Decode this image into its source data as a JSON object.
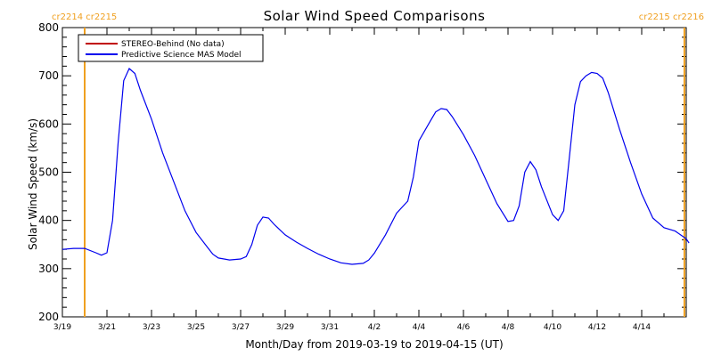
{
  "chart_data": {
    "type": "line",
    "title": "Solar Wind Speed Comparisons",
    "xlabel": "Month/Day from 2019-03-19 to 2019-04-15 (UT)",
    "ylabel": "Solar Wind Speed (km/s)",
    "xlim": [
      "2019-03-19",
      "2019-04-16"
    ],
    "ylim": [
      200,
      800
    ],
    "x_ticks": [
      {
        "date": "2019-03-19",
        "label": "3/19"
      },
      {
        "date": "2019-03-21",
        "label": "3/21"
      },
      {
        "date": "2019-03-23",
        "label": "3/23"
      },
      {
        "date": "2019-03-25",
        "label": "3/25"
      },
      {
        "date": "2019-03-27",
        "label": "3/27"
      },
      {
        "date": "2019-03-29",
        "label": "3/29"
      },
      {
        "date": "2019-03-31",
        "label": "3/31"
      },
      {
        "date": "2019-04-02",
        "label": "4/2"
      },
      {
        "date": "2019-04-04",
        "label": "4/4"
      },
      {
        "date": "2019-04-06",
        "label": "4/6"
      },
      {
        "date": "2019-04-08",
        "label": "4/8"
      },
      {
        "date": "2019-04-10",
        "label": "4/10"
      },
      {
        "date": "2019-04-12",
        "label": "4/12"
      },
      {
        "date": "2019-04-14",
        "label": "4/14"
      }
    ],
    "y_ticks": [
      200,
      300,
      400,
      500,
      600,
      700,
      800
    ],
    "grid": false,
    "legend_position": "top-left",
    "carrington": {
      "left_label": "cr2214 cr2215",
      "right_label": "cr2215 cr2216",
      "boundaries": [
        "2019-03-20T00:00",
        "2019-04-15T22:00"
      ],
      "color": "#f0a020"
    },
    "series": [
      {
        "name": "STEREO-Behind (No data)",
        "color": "#c00000",
        "points": []
      },
      {
        "name": "Predictive Science MAS Model",
        "color": "#0000ee",
        "points": [
          [
            "2019-03-19T00:00",
            340
          ],
          [
            "2019-03-19T12:00",
            342
          ],
          [
            "2019-03-20T00:00",
            342
          ],
          [
            "2019-03-20T12:00",
            333
          ],
          [
            "2019-03-20T18:00",
            328
          ],
          [
            "2019-03-21T00:00",
            333
          ],
          [
            "2019-03-21T06:00",
            400
          ],
          [
            "2019-03-21T12:00",
            560
          ],
          [
            "2019-03-21T18:00",
            690
          ],
          [
            "2019-03-22T00:00",
            715
          ],
          [
            "2019-03-22T06:00",
            705
          ],
          [
            "2019-03-22T12:00",
            670
          ],
          [
            "2019-03-23T00:00",
            610
          ],
          [
            "2019-03-23T12:00",
            540
          ],
          [
            "2019-03-24T00:00",
            480
          ],
          [
            "2019-03-24T12:00",
            420
          ],
          [
            "2019-03-25T00:00",
            375
          ],
          [
            "2019-03-25T12:00",
            345
          ],
          [
            "2019-03-25T18:00",
            330
          ],
          [
            "2019-03-26T00:00",
            322
          ],
          [
            "2019-03-26T12:00",
            318
          ],
          [
            "2019-03-27T00:00",
            320
          ],
          [
            "2019-03-27T06:00",
            325
          ],
          [
            "2019-03-27T12:00",
            350
          ],
          [
            "2019-03-27T18:00",
            390
          ],
          [
            "2019-03-28T00:00",
            407
          ],
          [
            "2019-03-28T06:00",
            405
          ],
          [
            "2019-03-28T12:00",
            392
          ],
          [
            "2019-03-29T00:00",
            370
          ],
          [
            "2019-03-29T12:00",
            355
          ],
          [
            "2019-03-30T00:00",
            342
          ],
          [
            "2019-03-30T12:00",
            330
          ],
          [
            "2019-03-31T00:00",
            320
          ],
          [
            "2019-03-31T12:00",
            312
          ],
          [
            "2019-04-01T00:00",
            309
          ],
          [
            "2019-04-01T12:00",
            311
          ],
          [
            "2019-04-01T18:00",
            318
          ],
          [
            "2019-04-02T00:00",
            332
          ],
          [
            "2019-04-02T12:00",
            370
          ],
          [
            "2019-04-03T00:00",
            415
          ],
          [
            "2019-04-03T12:00",
            440
          ],
          [
            "2019-04-03T18:00",
            490
          ],
          [
            "2019-04-04T00:00",
            565
          ],
          [
            "2019-04-04T12:00",
            605
          ],
          [
            "2019-04-04T18:00",
            625
          ],
          [
            "2019-04-05T00:00",
            632
          ],
          [
            "2019-04-05T06:00",
            630
          ],
          [
            "2019-04-05T12:00",
            615
          ],
          [
            "2019-04-06T00:00",
            578
          ],
          [
            "2019-04-06T12:00",
            535
          ],
          [
            "2019-04-07T00:00",
            485
          ],
          [
            "2019-04-07T12:00",
            435
          ],
          [
            "2019-04-08T00:00",
            398
          ],
          [
            "2019-04-08T06:00",
            400
          ],
          [
            "2019-04-08T12:00",
            430
          ],
          [
            "2019-04-08T18:00",
            500
          ],
          [
            "2019-04-09T00:00",
            522
          ],
          [
            "2019-04-09T06:00",
            505
          ],
          [
            "2019-04-09T12:00",
            470
          ],
          [
            "2019-04-10T00:00",
            412
          ],
          [
            "2019-04-10T06:00",
            400
          ],
          [
            "2019-04-10T12:00",
            420
          ],
          [
            "2019-04-10T18:00",
            530
          ],
          [
            "2019-04-11T00:00",
            640
          ],
          [
            "2019-04-11T06:00",
            688
          ],
          [
            "2019-04-11T12:00",
            700
          ],
          [
            "2019-04-11T18:00",
            707
          ],
          [
            "2019-04-12T00:00",
            705
          ],
          [
            "2019-04-12T06:00",
            695
          ],
          [
            "2019-04-12T12:00",
            665
          ],
          [
            "2019-04-13T00:00",
            590
          ],
          [
            "2019-04-13T12:00",
            520
          ],
          [
            "2019-04-14T00:00",
            455
          ],
          [
            "2019-04-14T12:00",
            405
          ],
          [
            "2019-04-15T00:00",
            385
          ],
          [
            "2019-04-15T12:00",
            378
          ],
          [
            "2019-04-16T00:00",
            362
          ],
          [
            "2019-04-16T03:00",
            353
          ]
        ]
      }
    ]
  }
}
